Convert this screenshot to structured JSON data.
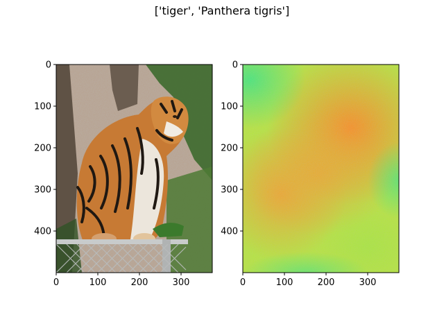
{
  "figure": {
    "suptitle": "['tiger', 'Panthera tigris']"
  },
  "chart_data": [
    {
      "type": "image",
      "content": "photo of a tiger sitting on a chain-link fence with trees and rock wall behind",
      "x_ticks": [
        0,
        100,
        200,
        300
      ],
      "y_ticks": [
        0,
        100,
        200,
        300,
        400
      ],
      "xlim": [
        0,
        375
      ],
      "ylim": [
        500,
        0
      ],
      "colors": {
        "sky_rock": "#b7a08c",
        "trunk": "#5f5245",
        "tiger_orange": "#c77a34",
        "tiger_stripe": "#1f1812",
        "tiger_white": "#ece6dc",
        "foliage": "#3d6a2d",
        "fence": "#b9bcbc"
      }
    },
    {
      "type": "heatmap",
      "content": "attribution/saliency map over the same image",
      "x_ticks": [
        0,
        100,
        200,
        300
      ],
      "y_ticks": [
        0,
        100,
        200,
        300,
        400
      ],
      "xlim": [
        0,
        375
      ],
      "ylim": [
        500,
        0
      ],
      "colors": {
        "low": "#3fe87a",
        "mid": "#b6e63a",
        "high": "#fb8c1e"
      }
    }
  ]
}
